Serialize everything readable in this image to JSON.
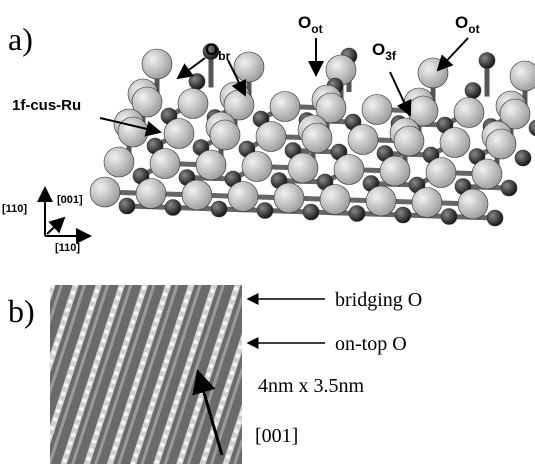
{
  "panel_a": {
    "label": "a)",
    "atom_labels": [
      {
        "base": "O",
        "sub": "br"
      },
      {
        "base": "O",
        "sub": "ot"
      },
      {
        "base": "O",
        "sub": "3f"
      },
      {
        "base": "O",
        "sub": "ot"
      }
    ],
    "ru_label": "1f-cus-Ru",
    "axes": {
      "vertical": "[110]",
      "depth": "[001]",
      "horizontal": "[110]"
    }
  },
  "panel_b": {
    "label": "b)",
    "annotations": {
      "bridging": "bridging O",
      "on_top": "on-top O",
      "size": "4nm x 3.5nm",
      "direction": "[001]"
    }
  }
}
